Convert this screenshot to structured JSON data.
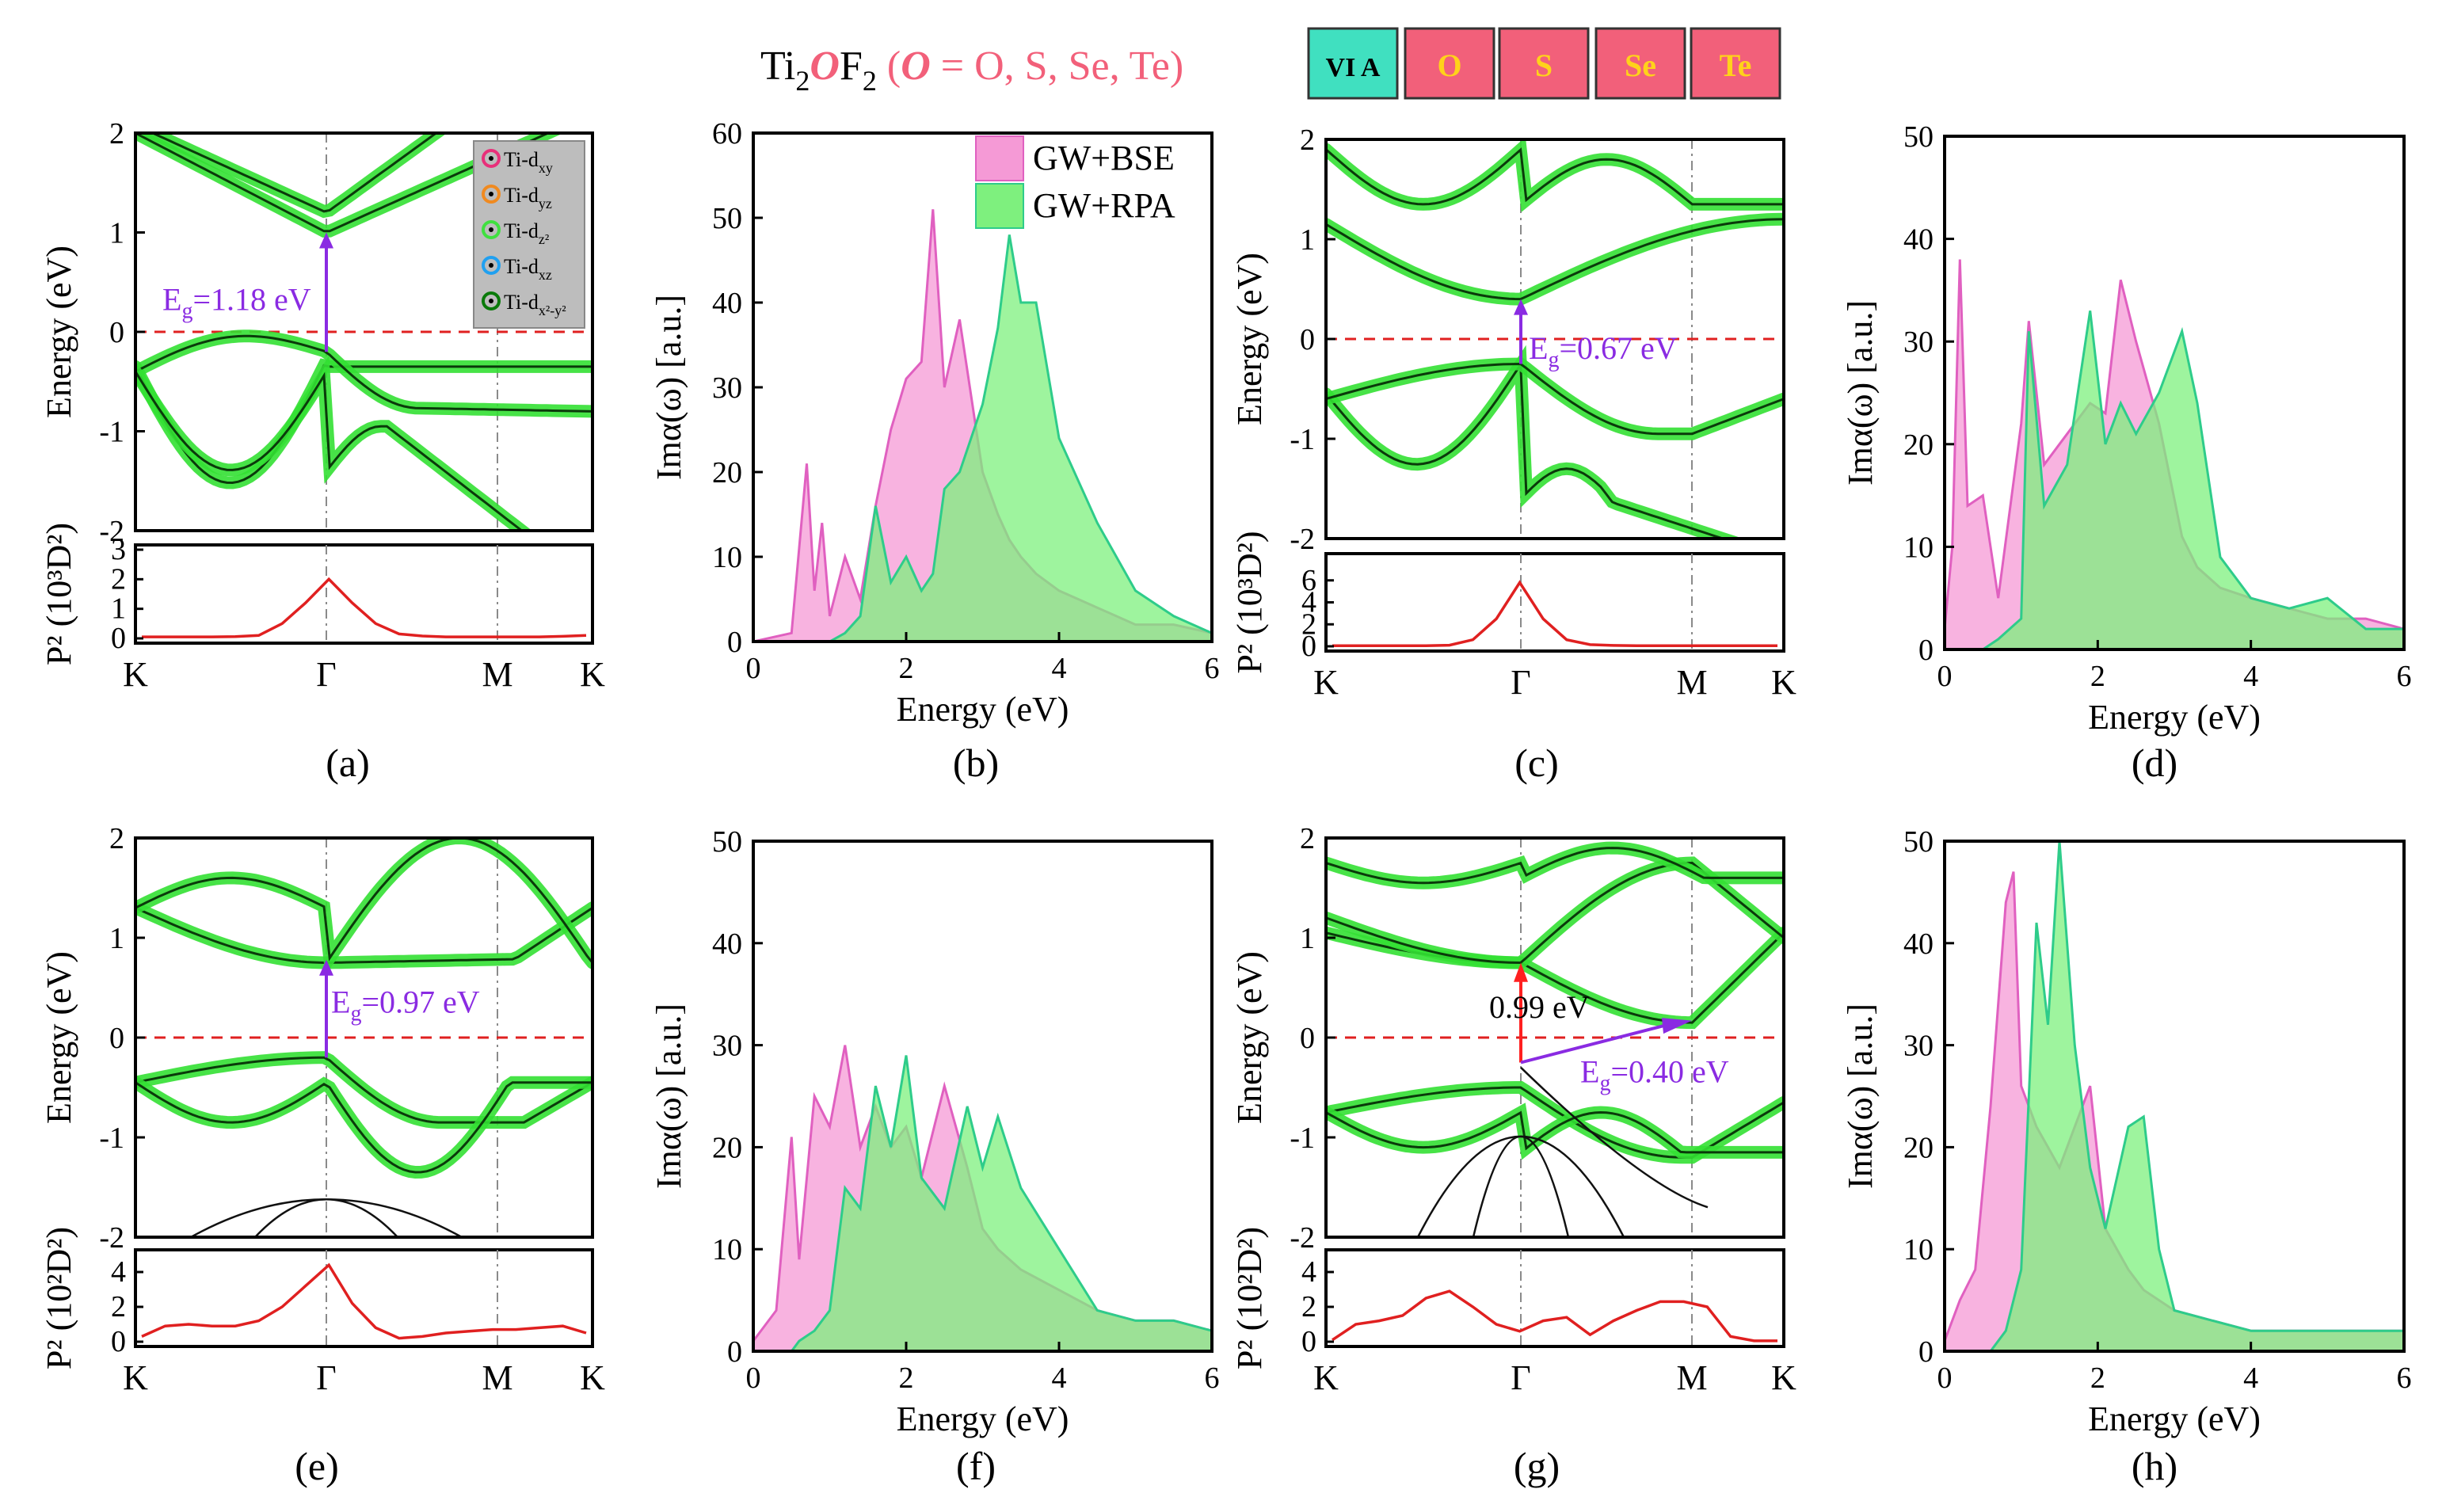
{
  "header": {
    "title_prefix": "Ti",
    "title_sub2": "2",
    "title_O": "O",
    "title_F": "F",
    "title_sub2b": "2",
    "title_paren_open": " (",
    "title_O2": "O",
    "title_eq": " = O, S, Se, Te)",
    "group_boxes": [
      {
        "label": "VI A",
        "fill": "#40e0c0",
        "text_color": "#000000"
      },
      {
        "label": "O",
        "fill": "#f2607a",
        "text_color": "#ffd21a"
      },
      {
        "label": "S",
        "fill": "#f2607a",
        "text_color": "#ffd21a"
      },
      {
        "label": "Se",
        "fill": "#f2607a",
        "text_color": "#ffd21a"
      },
      {
        "label": "Te",
        "fill": "#f2607a",
        "text_color": "#ffd21a"
      }
    ]
  },
  "colors": {
    "bse": "#f59ad6",
    "rpa": "#7ef07e",
    "rpa_edge": "#2ecc8a",
    "fermi": "#e02020",
    "gap_arrow": "#8a2be2",
    "direct_arrow": "#ff2020",
    "glow": "#33e033",
    "dipole": "#e02020"
  },
  "legend_orbitals": [
    {
      "label": "Ti-d",
      "sub": "xy",
      "color": "#e8307a"
    },
    {
      "label": "Ti-d",
      "sub": "yz",
      "color": "#f08a20"
    },
    {
      "label": "Ti-d",
      "sub": "z²",
      "color": "#40e040"
    },
    {
      "label": "Ti-d",
      "sub": "xz",
      "color": "#20a0f0"
    },
    {
      "label": "Ti-d",
      "sub": "x²-y²",
      "color": "#0a7a0a"
    }
  ],
  "legend_spectra": [
    {
      "label": "GW+BSE"
    },
    {
      "label": "GW+RPA"
    }
  ],
  "band_panels": [
    {
      "id": "a",
      "sublabel": "(a)",
      "ylabel": "Energy (eV)",
      "ylim": [
        -2,
        2
      ],
      "yticks": [
        "2",
        "1",
        "0",
        "-1",
        "-2"
      ],
      "kpoints": [
        "K",
        "Γ",
        "M",
        "K"
      ],
      "gap_label": "E",
      "gap_sub": "g",
      "gap_value": "=1.18 eV",
      "dipole_ylabel": "P² (10³D²)",
      "dipole_yticks": [
        "3",
        "2",
        "1",
        "0"
      ],
      "dipole_ymax": 3,
      "dipole_values": [
        0.05,
        0.05,
        0.05,
        0.05,
        0.06,
        0.1,
        0.5,
        1.2,
        2.0,
        1.2,
        0.5,
        0.15,
        0.08,
        0.05,
        0.05,
        0.05,
        0.05,
        0.05,
        0.07,
        0.1
      ]
    },
    {
      "id": "c",
      "sublabel": "(c)",
      "ylabel": "Energy (eV)",
      "ylim": [
        -2,
        2
      ],
      "yticks": [
        "2",
        "1",
        "0",
        "-1",
        "-2"
      ],
      "kpoints": [
        "K",
        "Γ",
        "M",
        "K"
      ],
      "gap_label": "E",
      "gap_sub": "g",
      "gap_value": "=0.67 eV",
      "dipole_ylabel": "P² (10³D²)",
      "dipole_yticks": [
        "6",
        "4",
        "2",
        "0"
      ],
      "dipole_ymax": 8,
      "dipole_values": [
        0.05,
        0.05,
        0.05,
        0.05,
        0.06,
        0.1,
        0.6,
        2.5,
        5.8,
        2.5,
        0.6,
        0.15,
        0.08,
        0.05,
        0.05,
        0.05,
        0.05,
        0.05,
        0.05,
        0.05
      ]
    },
    {
      "id": "e",
      "sublabel": "(e)",
      "ylabel": "Energy (eV)",
      "ylim": [
        -2,
        2
      ],
      "yticks": [
        "2",
        "1",
        "0",
        "-1",
        "-2"
      ],
      "kpoints": [
        "K",
        "Γ",
        "M",
        "K"
      ],
      "gap_label": "E",
      "gap_sub": "g",
      "gap_value": "=0.97 eV",
      "dipole_ylabel": "P² (10²D²)",
      "dipole_yticks": [
        "4",
        "2",
        "0"
      ],
      "dipole_ymax": 5,
      "dipole_values": [
        0.3,
        0.9,
        1.0,
        0.9,
        0.9,
        1.2,
        2.0,
        3.2,
        4.4,
        2.2,
        0.8,
        0.2,
        0.3,
        0.5,
        0.6,
        0.7,
        0.7,
        0.8,
        0.9,
        0.5
      ]
    },
    {
      "id": "g",
      "sublabel": "(g)",
      "ylabel": "Energy (eV)",
      "ylim": [
        -2,
        2
      ],
      "yticks": [
        "2",
        "1",
        "0",
        "-1",
        "-2"
      ],
      "kpoints": [
        "K",
        "Γ",
        "M",
        "K"
      ],
      "gap_label": "E",
      "gap_sub": "g",
      "gap_value": "=0.40 eV",
      "direct_label": "0.99 eV",
      "dipole_ylabel": "P² (10²D²)",
      "dipole_yticks": [
        "4",
        "2",
        "0"
      ],
      "dipole_ymax": 5,
      "dipole_values": [
        0.1,
        1.0,
        1.2,
        1.5,
        2.5,
        2.9,
        2.0,
        1.0,
        0.6,
        1.2,
        1.4,
        0.4,
        1.2,
        1.8,
        2.3,
        2.3,
        2.0,
        0.3,
        0.05,
        0.05
      ]
    }
  ],
  "chart_data": [
    {
      "type": "area",
      "panel": "b",
      "sublabel": "(b)",
      "xlabel": "Energy (eV)",
      "ylabel": "Imα(ω) [a.u.]",
      "xlim": [
        0,
        6
      ],
      "ylim": [
        0,
        60
      ],
      "xticks": [
        "0",
        "2",
        "4",
        "6"
      ],
      "yticks": [
        "60",
        "50",
        "40",
        "30",
        "20",
        "10",
        "0"
      ],
      "x": [
        0,
        0.5,
        0.7,
        0.8,
        0.9,
        1.0,
        1.2,
        1.4,
        1.6,
        1.8,
        2.0,
        2.2,
        2.35,
        2.5,
        2.7,
        3.0,
        3.2,
        3.35,
        3.5,
        3.7,
        4.0,
        4.5,
        5.0,
        5.5,
        6.0
      ],
      "series": [
        {
          "name": "GW+BSE",
          "values": [
            0,
            1,
            21,
            6,
            14,
            3,
            10,
            5,
            16,
            25,
            31,
            33,
            51,
            30,
            38,
            20,
            15,
            12,
            10,
            8,
            6,
            4,
            2,
            2,
            1
          ]
        },
        {
          "name": "GW+RPA",
          "values": [
            0,
            0,
            0,
            0,
            0,
            0,
            1,
            3,
            16,
            7,
            10,
            6,
            8,
            18,
            20,
            28,
            37,
            48,
            40,
            40,
            24,
            14,
            6,
            3,
            1
          ]
        }
      ]
    },
    {
      "type": "area",
      "panel": "d",
      "sublabel": "(d)",
      "xlabel": "Energy (eV)",
      "ylabel": "Imα(ω) [a.u.]",
      "xlim": [
        0,
        6
      ],
      "ylim": [
        0,
        50
      ],
      "xticks": [
        "0",
        "2",
        "4",
        "6"
      ],
      "yticks": [
        "50",
        "40",
        "30",
        "20",
        "10",
        "0"
      ],
      "x": [
        0,
        0.1,
        0.2,
        0.3,
        0.5,
        0.7,
        1.0,
        1.1,
        1.3,
        1.6,
        1.9,
        2.1,
        2.3,
        2.5,
        2.8,
        3.1,
        3.3,
        3.6,
        4.0,
        4.5,
        5.0,
        5.5,
        6.0
      ],
      "series": [
        {
          "name": "GW+BSE",
          "values": [
            2,
            10,
            38,
            14,
            15,
            5,
            22,
            32,
            18,
            21,
            24,
            23,
            36,
            30,
            22,
            11,
            8,
            6,
            5,
            4,
            3,
            3,
            2
          ]
        },
        {
          "name": "GW+RPA",
          "values": [
            0,
            0,
            0,
            0,
            0,
            1,
            3,
            31,
            14,
            18,
            33,
            20,
            24,
            21,
            25,
            31,
            24,
            9,
            5,
            4,
            5,
            2,
            2
          ]
        }
      ]
    },
    {
      "type": "area",
      "panel": "f",
      "sublabel": "(f)",
      "xlabel": "Energy (eV)",
      "ylabel": "Imα(ω) [a.u.]",
      "xlim": [
        0,
        6
      ],
      "ylim": [
        0,
        50
      ],
      "xticks": [
        "0",
        "2",
        "4",
        "6"
      ],
      "yticks": [
        "50",
        "40",
        "30",
        "20",
        "10",
        "0"
      ],
      "x": [
        0,
        0.3,
        0.5,
        0.6,
        0.8,
        1.0,
        1.2,
        1.4,
        1.6,
        1.8,
        2.0,
        2.2,
        2.5,
        2.8,
        3.0,
        3.2,
        3.5,
        4.0,
        4.5,
        5.0,
        5.5,
        6.0
      ],
      "series": [
        {
          "name": "GW+BSE",
          "values": [
            1,
            4,
            21,
            9,
            25,
            22,
            30,
            20,
            24,
            20,
            22,
            17,
            26,
            18,
            12,
            10,
            8,
            6,
            4,
            3,
            3,
            2
          ]
        },
        {
          "name": "GW+RPA",
          "values": [
            0,
            0,
            0,
            1,
            2,
            4,
            16,
            14,
            26,
            20,
            29,
            17,
            14,
            24,
            18,
            23,
            16,
            10,
            4,
            3,
            3,
            2
          ]
        }
      ]
    },
    {
      "type": "area",
      "panel": "h",
      "sublabel": "(h)",
      "xlabel": "Energy (eV)",
      "ylabel": "Imα(ω) [a.u.]",
      "xlim": [
        0,
        6
      ],
      "ylim": [
        0,
        50
      ],
      "xticks": [
        "0",
        "2",
        "4",
        "6"
      ],
      "yticks": [
        "50",
        "40",
        "30",
        "20",
        "10",
        "0"
      ],
      "x": [
        0,
        0.2,
        0.4,
        0.6,
        0.8,
        0.9,
        1.0,
        1.2,
        1.35,
        1.5,
        1.7,
        1.9,
        2.1,
        2.4,
        2.6,
        2.8,
        3.0,
        3.5,
        4.0,
        4.5,
        5.0,
        5.5,
        6.0
      ],
      "series": [
        {
          "name": "GW+BSE",
          "values": [
            1,
            5,
            8,
            24,
            44,
            47,
            26,
            22,
            20,
            18,
            22,
            26,
            12,
            8,
            6,
            5,
            4,
            3,
            2,
            2,
            2,
            2,
            2
          ]
        },
        {
          "name": "GW+RPA",
          "values": [
            0,
            0,
            0,
            0,
            2,
            5,
            8,
            42,
            32,
            50,
            30,
            18,
            12,
            22,
            23,
            10,
            4,
            3,
            2,
            2,
            2,
            2,
            2
          ]
        }
      ]
    }
  ]
}
